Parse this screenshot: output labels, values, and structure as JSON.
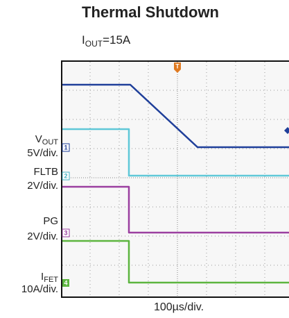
{
  "header": {
    "title": "Thermal Shutdown",
    "condition": {
      "main": "I",
      "sub": "OUT",
      "rest": "=15A"
    }
  },
  "channels": [
    {
      "marker": "1",
      "name": {
        "main": "V",
        "sub": "OUT"
      },
      "scale": "5V/div."
    },
    {
      "marker": "2",
      "name": {
        "main": "FLTB",
        "sub": ""
      },
      "scale": "2V/div."
    },
    {
      "marker": "3",
      "name": {
        "main": "PG",
        "sub": ""
      },
      "scale": "2V/div."
    },
    {
      "marker": "4",
      "name": {
        "main": "I",
        "sub": "FET"
      },
      "scale": "10A/div."
    }
  ],
  "trigger": "T",
  "timebase": "100µs/div."
}
